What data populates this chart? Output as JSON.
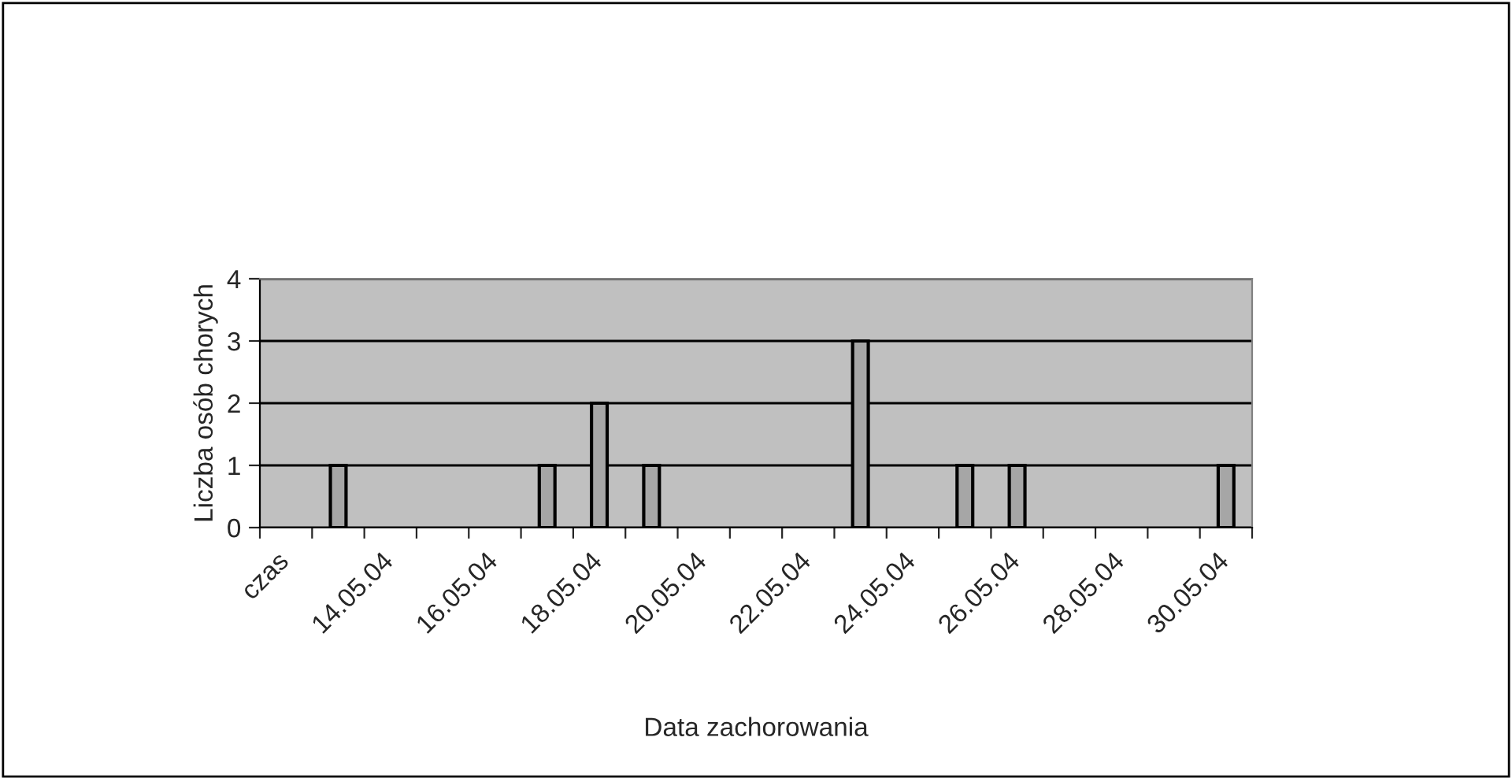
{
  "chart_data": {
    "type": "bar",
    "xlabel": "Data zachorowania",
    "ylabel": "Liczba osób chorych",
    "categories": [
      "czas",
      null,
      "14.05.04",
      null,
      "16.05.04",
      null,
      "18.05.04",
      null,
      "20.05.04",
      null,
      "22.05.04",
      null,
      "24.05.04",
      null,
      "26.05.04",
      null,
      "28.05.04",
      null,
      "30.05.04"
    ],
    "values": [
      null,
      1,
      null,
      null,
      null,
      1,
      2,
      1,
      null,
      null,
      null,
      3,
      null,
      1,
      1,
      null,
      null,
      null,
      1
    ],
    "color": "#a6a6a6",
    "ylim": [
      0,
      4
    ],
    "yticks": [
      0,
      1,
      2,
      3,
      4
    ],
    "grid": "y",
    "legend": false
  }
}
